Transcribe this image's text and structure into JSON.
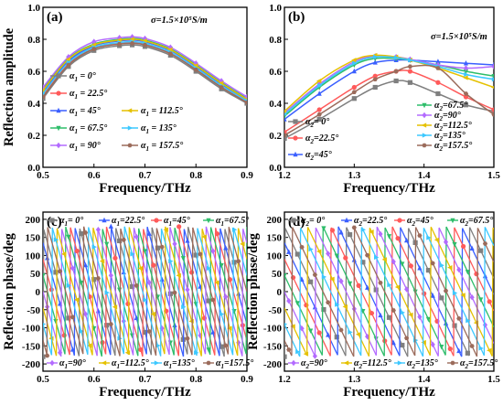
{
  "chart_data": [
    {
      "panel": "(a)",
      "type": "line",
      "annotation": "σ=1.5×10⁵S/m",
      "xlabel": "Frequency/THz",
      "ylabel": "Reflection amplitude",
      "xlim": [
        0.5,
        0.9
      ],
      "ylim": [
        0.0,
        1.0
      ],
      "xticks": [
        "0.5",
        "0.6",
        "0.7",
        "0.8",
        "0.9"
      ],
      "yticks": [
        "0.0",
        "0.2",
        "0.4",
        "0.6",
        "0.8",
        "1.0"
      ],
      "series": [
        {
          "name": "α1 = 0°",
          "color": "#7f7f7f",
          "marker": "square",
          "x": [
            0.5,
            0.55,
            0.6,
            0.65,
            0.675,
            0.7,
            0.75,
            0.8,
            0.85,
            0.9
          ],
          "y": [
            0.43,
            0.63,
            0.73,
            0.76,
            0.765,
            0.755,
            0.7,
            0.6,
            0.49,
            0.4
          ]
        },
        {
          "name": "α1 = 22.5°",
          "color": "#ff5a5a",
          "marker": "circle",
          "x": [
            0.5,
            0.55,
            0.6,
            0.65,
            0.675,
            0.7,
            0.75,
            0.8,
            0.85,
            0.9
          ],
          "y": [
            0.45,
            0.65,
            0.745,
            0.775,
            0.78,
            0.77,
            0.715,
            0.615,
            0.505,
            0.41
          ]
        },
        {
          "name": "α1 = 45°",
          "color": "#3a5fff",
          "marker": "triangle",
          "x": [
            0.5,
            0.55,
            0.6,
            0.65,
            0.675,
            0.7,
            0.75,
            0.8,
            0.85,
            0.9
          ],
          "y": [
            0.47,
            0.665,
            0.76,
            0.79,
            0.795,
            0.785,
            0.73,
            0.63,
            0.52,
            0.42
          ]
        },
        {
          "name": "α1 = 67.5°",
          "color": "#2ebd6a",
          "marker": "triangle-down",
          "x": [
            0.5,
            0.55,
            0.6,
            0.65,
            0.675,
            0.7,
            0.75,
            0.8,
            0.85,
            0.9
          ],
          "y": [
            0.49,
            0.68,
            0.77,
            0.8,
            0.805,
            0.795,
            0.74,
            0.64,
            0.53,
            0.43
          ]
        },
        {
          "name": "α1 = 90°",
          "color": "#b36bff",
          "marker": "diamond",
          "x": [
            0.5,
            0.55,
            0.6,
            0.65,
            0.675,
            0.7,
            0.75,
            0.8,
            0.85,
            0.9
          ],
          "y": [
            0.5,
            0.69,
            0.785,
            0.81,
            0.815,
            0.805,
            0.75,
            0.65,
            0.54,
            0.44
          ]
        },
        {
          "name": "α1 = 112.5°",
          "color": "#e5c100",
          "marker": "triangle-left",
          "x": [
            0.5,
            0.55,
            0.6,
            0.65,
            0.675,
            0.7,
            0.75,
            0.8,
            0.85,
            0.9
          ],
          "y": [
            0.48,
            0.675,
            0.765,
            0.795,
            0.8,
            0.79,
            0.735,
            0.635,
            0.525,
            0.425
          ]
        },
        {
          "name": "α1 = 135°",
          "color": "#3cc8ff",
          "marker": "triangle-right",
          "x": [
            0.5,
            0.55,
            0.6,
            0.65,
            0.675,
            0.7,
            0.75,
            0.8,
            0.85,
            0.9
          ],
          "y": [
            0.46,
            0.655,
            0.75,
            0.78,
            0.785,
            0.775,
            0.72,
            0.62,
            0.51,
            0.415
          ]
        },
        {
          "name": "α1 = 157.5°",
          "color": "#9b6b5b",
          "marker": "hexagon",
          "x": [
            0.5,
            0.55,
            0.6,
            0.65,
            0.675,
            0.7,
            0.75,
            0.8,
            0.85,
            0.9
          ],
          "y": [
            0.44,
            0.64,
            0.74,
            0.77,
            0.775,
            0.765,
            0.71,
            0.61,
            0.5,
            0.405
          ]
        }
      ]
    },
    {
      "panel": "(b)",
      "type": "line",
      "annotation": "σ=1.5×10⁵S/m",
      "xlabel": "Frequency/THz",
      "ylabel": "",
      "xlim": [
        1.2,
        1.5
      ],
      "ylim": [
        0.0,
        1.0
      ],
      "xticks": [
        "1.2",
        "1.3",
        "1.4",
        "1.5"
      ],
      "yticks": [
        "0.0",
        "0.2",
        "0.4",
        "0.6",
        "0.8",
        "1.0"
      ],
      "series": [
        {
          "name": "α2= 0°",
          "color": "#7f7f7f",
          "marker": "square",
          "x": [
            1.2,
            1.25,
            1.3,
            1.33,
            1.36,
            1.38,
            1.42,
            1.46,
            1.5
          ],
          "y": [
            0.18,
            0.3,
            0.43,
            0.5,
            0.54,
            0.53,
            0.46,
            0.39,
            0.35
          ]
        },
        {
          "name": "α2=22.5°",
          "color": "#ff5a5a",
          "marker": "circle",
          "x": [
            1.2,
            1.25,
            1.3,
            1.33,
            1.36,
            1.38,
            1.42,
            1.46,
            1.5
          ],
          "y": [
            0.22,
            0.36,
            0.5,
            0.57,
            0.6,
            0.6,
            0.53,
            0.44,
            0.36
          ]
        },
        {
          "name": "α2=45°",
          "color": "#3a5fff",
          "marker": "triangle",
          "x": [
            1.2,
            1.25,
            1.3,
            1.33,
            1.36,
            1.38,
            1.42,
            1.46,
            1.5
          ],
          "y": [
            0.3,
            0.46,
            0.6,
            0.655,
            0.67,
            0.67,
            0.66,
            0.65,
            0.64
          ]
        },
        {
          "name": "α2=67.5°",
          "color": "#2ebd6a",
          "marker": "triangle-down",
          "x": [
            1.2,
            1.25,
            1.3,
            1.33,
            1.36,
            1.38,
            1.42,
            1.46,
            1.5
          ],
          "y": [
            0.32,
            0.5,
            0.64,
            0.68,
            0.68,
            0.67,
            0.64,
            0.6,
            0.57
          ]
        },
        {
          "name": "α2=90°",
          "color": "#b36bff",
          "marker": "diamond",
          "x": [
            1.2,
            1.25,
            1.3,
            1.33,
            1.36,
            1.38,
            1.42,
            1.46,
            1.5
          ],
          "y": [
            0.34,
            0.52,
            0.66,
            0.695,
            0.69,
            0.675,
            0.64,
            0.62,
            0.63
          ]
        },
        {
          "name": "α2=112.5°",
          "color": "#e5c100",
          "marker": "triangle-left",
          "x": [
            1.2,
            1.25,
            1.3,
            1.33,
            1.36,
            1.38,
            1.42,
            1.46,
            1.5
          ],
          "y": [
            0.35,
            0.54,
            0.67,
            0.7,
            0.69,
            0.67,
            0.62,
            0.56,
            0.5
          ]
        },
        {
          "name": "α2=135°",
          "color": "#3cc8ff",
          "marker": "triangle-right",
          "x": [
            1.2,
            1.25,
            1.3,
            1.33,
            1.36,
            1.38,
            1.42,
            1.46,
            1.5
          ],
          "y": [
            0.33,
            0.51,
            0.65,
            0.69,
            0.685,
            0.67,
            0.63,
            0.58,
            0.55
          ]
        },
        {
          "name": "α2=157.5°",
          "color": "#9b6b5b",
          "marker": "hexagon",
          "x": [
            1.2,
            1.25,
            1.3,
            1.33,
            1.36,
            1.38,
            1.42,
            1.46,
            1.5
          ],
          "y": [
            0.2,
            0.33,
            0.47,
            0.55,
            0.6,
            0.63,
            0.62,
            0.46,
            0.33
          ]
        }
      ]
    },
    {
      "panel": "(c)",
      "type": "line",
      "xlabel": "Frequency/THz",
      "ylabel": "Reflection phase/deg",
      "xlim": [
        0.5,
        0.9
      ],
      "ylim": [
        -220,
        220
      ],
      "xticks": [
        "0.5",
        "0.6",
        "0.7",
        "0.8",
        "0.9"
      ],
      "yticks": [
        "-200",
        "-150",
        "-100",
        "-50",
        "0",
        "50",
        "100",
        "150",
        "200"
      ],
      "wrap_period_thz": 0.0711,
      "series": [
        {
          "name": "α1= 0°",
          "color": "#7f7f7f",
          "marker": "square",
          "offset_deg": 0
        },
        {
          "name": "α1=22.5°",
          "color": "#3a5fff",
          "marker": "triangle",
          "offset_deg": -45
        },
        {
          "name": "α1=45°",
          "color": "#ff5a5a",
          "marker": "circle",
          "offset_deg": -90
        },
        {
          "name": "α1=67.5°",
          "color": "#2ebd6a",
          "marker": "triangle-down",
          "offset_deg": -135
        },
        {
          "name": "α1=90°",
          "color": "#b36bff",
          "marker": "diamond",
          "offset_deg": -180
        },
        {
          "name": "α1=112.5°",
          "color": "#e5c100",
          "marker": "triangle-left",
          "offset_deg": -225
        },
        {
          "name": "α1=135°",
          "color": "#3cc8ff",
          "marker": "triangle-right",
          "offset_deg": -270
        },
        {
          "name": "α1=157.5°",
          "color": "#9b6b5b",
          "marker": "hexagon",
          "offset_deg": -315
        }
      ]
    },
    {
      "panel": "(d)",
      "type": "line",
      "xlabel": "Frequency/THz",
      "ylabel": "Reflection phase/deg",
      "xlim": [
        1.2,
        1.5
      ],
      "ylim": [
        -220,
        220
      ],
      "xticks": [
        "1.2",
        "1.3",
        "1.4",
        "1.5"
      ],
      "yticks": [
        "-200",
        "-150",
        "-100",
        "-50",
        "0",
        "50",
        "100",
        "150",
        "200"
      ],
      "wrap_period_thz": 0.0883,
      "series": [
        {
          "name": "α2= 0°",
          "color": "#7f7f7f",
          "marker": "square",
          "offset_deg": 0
        },
        {
          "name": "α2=22.5°",
          "color": "#3a5fff",
          "marker": "triangle",
          "offset_deg": -45
        },
        {
          "name": "α2=45°",
          "color": "#ff5a5a",
          "marker": "circle",
          "offset_deg": -90
        },
        {
          "name": "α2=67.5°",
          "color": "#2ebd6a",
          "marker": "triangle-down",
          "offset_deg": -135
        },
        {
          "name": "α2=90°",
          "color": "#b36bff",
          "marker": "diamond",
          "offset_deg": -180
        },
        {
          "name": "α2=112.5°",
          "color": "#e5c100",
          "marker": "triangle-left",
          "offset_deg": -225
        },
        {
          "name": "α2=135°",
          "color": "#3cc8ff",
          "marker": "triangle-right",
          "offset_deg": -270
        },
        {
          "name": "α2=157.5°",
          "color": "#9b6b5b",
          "marker": "hexagon",
          "offset_deg": -315
        }
      ]
    }
  ]
}
